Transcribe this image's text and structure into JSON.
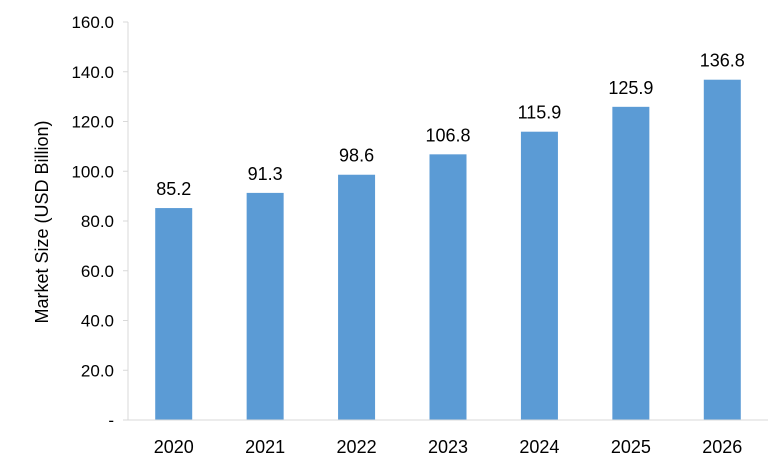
{
  "chart_data": {
    "type": "bar",
    "categories": [
      "2020",
      "2021",
      "2022",
      "2023",
      "2024",
      "2025",
      "2026"
    ],
    "values": [
      85.2,
      91.3,
      98.6,
      106.8,
      115.9,
      125.9,
      136.8
    ],
    "value_labels": [
      "85.2",
      "91.3",
      "98.6",
      "106.8",
      "115.9",
      "125.9",
      "136.8"
    ],
    "title": "",
    "xlabel": "",
    "ylabel": "Market Size (USD Billion)",
    "ylim": [
      0,
      160
    ],
    "yticks": [
      0,
      20,
      40,
      60,
      80,
      100,
      120,
      140,
      160
    ],
    "ytick_labels": [
      "-",
      "20.0",
      "40.0",
      "60.0",
      "80.0",
      "100.0",
      "120.0",
      "140.0",
      "160.0"
    ],
    "grid": false,
    "legend": "none",
    "bar_color": "#5b9bd5",
    "axis_color": "#d9d9d9"
  }
}
